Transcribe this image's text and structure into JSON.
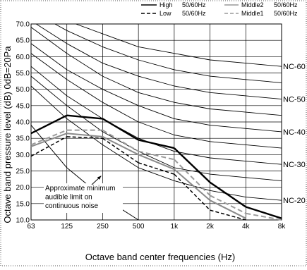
{
  "chart_data": {
    "type": "line",
    "xlabel": "Octave band center frequencies (Hz)",
    "ylabel": "Octave band pressure level (dB) 0dB=20Pa",
    "categories": [
      "63",
      "125",
      "250",
      "500",
      "1k",
      "2k",
      "4k",
      "8k"
    ],
    "y_ticks": [
      "10.0",
      "15.0",
      "20.0",
      "25.0",
      "30.0",
      "35.0",
      "40.0",
      "45.0",
      "50.0",
      "55.0",
      "60.0",
      "65.0",
      "70.0"
    ],
    "ylim": [
      10,
      70
    ],
    "grid": true,
    "legend": [
      {
        "label": "High",
        "suffix": "50/60Hz",
        "color": "#000000",
        "style": "solid-thick"
      },
      {
        "label": "Low",
        "suffix": "50/60Hz",
        "color": "#000000",
        "style": "dashed"
      },
      {
        "label": "Middle2",
        "suffix": "50/60Hz",
        "color": "#999999",
        "style": "solid"
      },
      {
        "label": "Middle1",
        "suffix": "50/60Hz",
        "color": "#999999",
        "style": "dashed"
      }
    ],
    "series": [
      {
        "name": "High",
        "values": [
          36.5,
          42,
          41,
          34.5,
          32,
          21.5,
          14,
          10.5
        ]
      },
      {
        "name": "Low",
        "values": [
          29.5,
          35.5,
          35,
          27.5,
          24,
          13,
          10,
          null
        ]
      },
      {
        "name": "Middle2",
        "values": [
          32.5,
          36.5,
          35.5,
          30,
          25.5,
          16,
          10.5,
          null
        ]
      },
      {
        "name": "Middle1",
        "values": [
          33,
          37.5,
          37.5,
          31,
          28.5,
          17.5,
          12,
          10
        ]
      }
    ],
    "nc_curves": [
      {
        "label": "NC-60",
        "values": [
          77,
          71,
          67,
          63,
          61,
          59,
          58,
          57
        ]
      },
      {
        "label": "",
        "values": [
          74,
          68,
          63,
          59,
          56,
          54,
          53,
          52
        ]
      },
      {
        "label": "NC-50",
        "values": [
          71,
          64,
          58,
          54,
          51,
          49,
          48,
          47
        ]
      },
      {
        "label": "",
        "values": [
          69,
          61,
          54,
          49,
          46,
          44,
          43,
          42
        ]
      },
      {
        "label": "NC-40",
        "values": [
          64,
          56,
          50,
          45,
          41,
          39,
          38,
          37
        ]
      },
      {
        "label": "",
        "values": [
          61,
          53,
          46,
          40,
          36,
          34,
          33,
          32
        ]
      },
      {
        "label": "NC-30",
        "values": [
          57,
          48,
          41,
          35,
          31,
          29,
          28,
          27
        ]
      },
      {
        "label": "",
        "values": [
          54,
          45,
          37,
          31,
          26,
          24,
          23,
          22
        ]
      },
      {
        "label": "NC-20",
        "values": [
          51,
          41,
          33,
          26,
          22,
          19,
          17,
          16
        ]
      }
    ],
    "min_audible_limit": {
      "values": [
        39,
        26,
        17,
        10
      ]
    },
    "annotation": {
      "lines": [
        "Approximate minimum",
        "audible limit on",
        "continuous noise"
      ],
      "arrow_to": {
        "x": "250",
        "y": 23.5
      }
    }
  }
}
